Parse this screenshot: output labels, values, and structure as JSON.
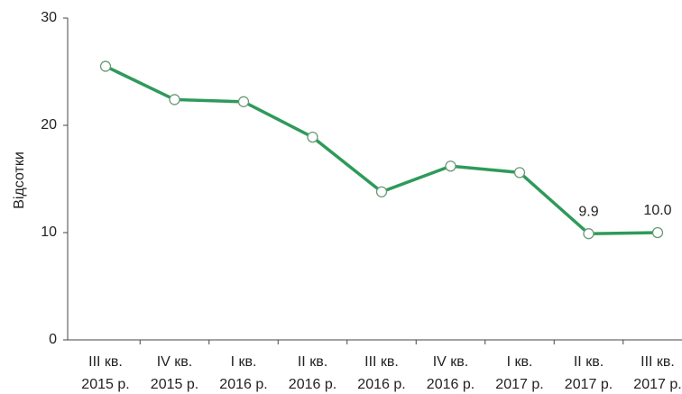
{
  "chart_data": {
    "type": "line",
    "y_label": "Відсотки",
    "categories": [
      [
        "III кв.",
        "2015 р."
      ],
      [
        "IV кв.",
        "2015 р."
      ],
      [
        "I кв.",
        "2016 р."
      ],
      [
        "II кв.",
        "2016 р."
      ],
      [
        "III кв.",
        "2016 р."
      ],
      [
        "IV кв.",
        "2016 р."
      ],
      [
        "I кв.",
        "2017 р."
      ],
      [
        "II кв.",
        "2017 р."
      ],
      [
        "III кв.",
        "2017 р."
      ]
    ],
    "series": [
      {
        "color": "#2e9a5a",
        "values": [
          25.5,
          22.4,
          22.2,
          18.9,
          13.8,
          16.2,
          15.6,
          9.9,
          10.0
        ],
        "value_labels": [
          null,
          null,
          null,
          null,
          null,
          null,
          null,
          "9.9",
          "10.0"
        ]
      }
    ],
    "ylim": [
      0,
      30
    ],
    "yticks": [
      0,
      10,
      20,
      30
    ],
    "grid": false
  }
}
